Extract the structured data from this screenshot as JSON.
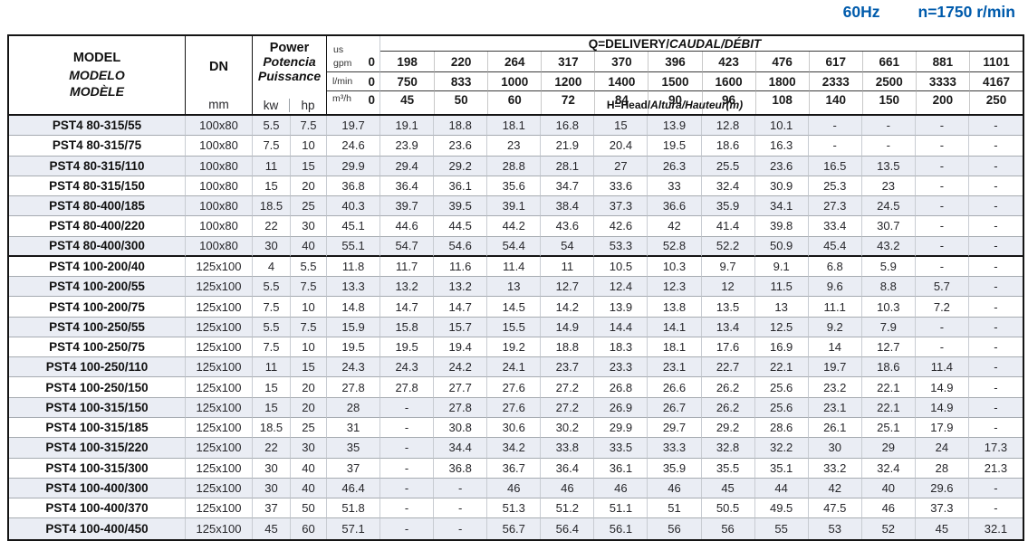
{
  "page_header": {
    "frequency": "60Hz",
    "speed": "n=1750 r/min"
  },
  "colors": {
    "accent_blue": "#005bac",
    "row_shade": "#eaedf4",
    "border_dark": "#141414"
  },
  "table": {
    "model_header": [
      "MODEL",
      "MODELO",
      "MODÈLE"
    ],
    "dn_label": "DN",
    "dn_unit": "mm",
    "power_header": [
      "Power",
      "Potencia",
      "Puissance"
    ],
    "power_units": [
      "kw",
      "hp"
    ],
    "q_header_plain": "Q=DELIVERY/",
    "q_header_italic": "CAUDAL/DÉBIT",
    "h_header_plain": "H=Head/",
    "h_header_italic": "Altura/Hauteur(m)",
    "flow_rows": [
      {
        "unit_top": "us",
        "unit": "gpm",
        "zero": "0",
        "values": [
          "198",
          "220",
          "264",
          "317",
          "370",
          "396",
          "423",
          "476",
          "617",
          "661",
          "881",
          "1101"
        ]
      },
      {
        "unit": "l/min",
        "zero": "0",
        "values": [
          "750",
          "833",
          "1000",
          "1200",
          "1400",
          "1500",
          "1600",
          "1800",
          "2333",
          "2500",
          "3333",
          "4167"
        ]
      },
      {
        "unit": "m³/h",
        "zero": "0",
        "values": [
          "45",
          "50",
          "60",
          "72",
          "84",
          "90",
          "96",
          "108",
          "140",
          "150",
          "200",
          "250"
        ]
      }
    ],
    "rows": [
      {
        "model": "PST4 80-315/55",
        "dn": "100x80",
        "kw": "5.5",
        "hp": "7.5",
        "heads": [
          "19.7",
          "19.1",
          "18.8",
          "18.1",
          "16.8",
          "15",
          "13.9",
          "12.8",
          "10.1",
          "-",
          "-",
          "-",
          "-"
        ]
      },
      {
        "model": "PST4 80-315/75",
        "dn": "100x80",
        "kw": "7.5",
        "hp": "10",
        "heads": [
          "24.6",
          "23.9",
          "23.6",
          "23",
          "21.9",
          "20.4",
          "19.5",
          "18.6",
          "16.3",
          "-",
          "-",
          "-",
          "-"
        ]
      },
      {
        "model": "PST4 80-315/110",
        "dn": "100x80",
        "kw": "11",
        "hp": "15",
        "heads": [
          "29.9",
          "29.4",
          "29.2",
          "28.8",
          "28.1",
          "27",
          "26.3",
          "25.5",
          "23.6",
          "16.5",
          "13.5",
          "-",
          "-"
        ]
      },
      {
        "model": "PST4 80-315/150",
        "dn": "100x80",
        "kw": "15",
        "hp": "20",
        "heads": [
          "36.8",
          "36.4",
          "36.1",
          "35.6",
          "34.7",
          "33.6",
          "33",
          "32.4",
          "30.9",
          "25.3",
          "23",
          "-",
          "-"
        ]
      },
      {
        "model": "PST4 80-400/185",
        "dn": "100x80",
        "kw": "18.5",
        "hp": "25",
        "heads": [
          "40.3",
          "39.7",
          "39.5",
          "39.1",
          "38.4",
          "37.3",
          "36.6",
          "35.9",
          "34.1",
          "27.3",
          "24.5",
          "-",
          "-"
        ]
      },
      {
        "model": "PST4 80-400/220",
        "dn": "100x80",
        "kw": "22",
        "hp": "30",
        "heads": [
          "45.1",
          "44.6",
          "44.5",
          "44.2",
          "43.6",
          "42.6",
          "42",
          "41.4",
          "39.8",
          "33.4",
          "30.7",
          "-",
          "-"
        ]
      },
      {
        "model": "PST4 80-400/300",
        "dn": "100x80",
        "kw": "30",
        "hp": "40",
        "heads": [
          "55.1",
          "54.7",
          "54.6",
          "54.4",
          "54",
          "53.3",
          "52.8",
          "52.2",
          "50.9",
          "45.4",
          "43.2",
          "-",
          "-"
        ]
      },
      {
        "model": "PST4 100-200/40",
        "dn": "125x100",
        "kw": "4",
        "hp": "5.5",
        "heads": [
          "11.8",
          "11.7",
          "11.6",
          "11.4",
          "11",
          "10.5",
          "10.3",
          "9.7",
          "9.1",
          "6.8",
          "5.9",
          "-",
          "-"
        ]
      },
      {
        "model": "PST4 100-200/55",
        "dn": "125x100",
        "kw": "5.5",
        "hp": "7.5",
        "heads": [
          "13.3",
          "13.2",
          "13.2",
          "13",
          "12.7",
          "12.4",
          "12.3",
          "12",
          "11.5",
          "9.6",
          "8.8",
          "5.7",
          "-"
        ]
      },
      {
        "model": "PST4 100-200/75",
        "dn": "125x100",
        "kw": "7.5",
        "hp": "10",
        "heads": [
          "14.8",
          "14.7",
          "14.7",
          "14.5",
          "14.2",
          "13.9",
          "13.8",
          "13.5",
          "13",
          "11.1",
          "10.3",
          "7.2",
          "-"
        ]
      },
      {
        "model": "PST4 100-250/55",
        "dn": "125x100",
        "kw": "5.5",
        "hp": "7.5",
        "heads": [
          "15.9",
          "15.8",
          "15.7",
          "15.5",
          "14.9",
          "14.4",
          "14.1",
          "13.4",
          "12.5",
          "9.2",
          "7.9",
          "-",
          "-"
        ]
      },
      {
        "model": "PST4 100-250/75",
        "dn": "125x100",
        "kw": "7.5",
        "hp": "10",
        "heads": [
          "19.5",
          "19.5",
          "19.4",
          "19.2",
          "18.8",
          "18.3",
          "18.1",
          "17.6",
          "16.9",
          "14",
          "12.7",
          "-",
          "-"
        ]
      },
      {
        "model": "PST4 100-250/110",
        "dn": "125x100",
        "kw": "11",
        "hp": "15",
        "heads": [
          "24.3",
          "24.3",
          "24.2",
          "24.1",
          "23.7",
          "23.3",
          "23.1",
          "22.7",
          "22.1",
          "19.7",
          "18.6",
          "11.4",
          "-"
        ]
      },
      {
        "model": "PST4 100-250/150",
        "dn": "125x100",
        "kw": "15",
        "hp": "20",
        "heads": [
          "27.8",
          "27.8",
          "27.7",
          "27.6",
          "27.2",
          "26.8",
          "26.6",
          "26.2",
          "25.6",
          "23.2",
          "22.1",
          "14.9",
          "-"
        ]
      },
      {
        "model": "PST4 100-315/150",
        "dn": "125x100",
        "kw": "15",
        "hp": "20",
        "heads": [
          "28",
          "-",
          "27.8",
          "27.6",
          "27.2",
          "26.9",
          "26.7",
          "26.2",
          "25.6",
          "23.1",
          "22.1",
          "14.9",
          "-"
        ]
      },
      {
        "model": "PST4 100-315/185",
        "dn": "125x100",
        "kw": "18.5",
        "hp": "25",
        "heads": [
          "31",
          "-",
          "30.8",
          "30.6",
          "30.2",
          "29.9",
          "29.7",
          "29.2",
          "28.6",
          "26.1",
          "25.1",
          "17.9",
          "-"
        ]
      },
      {
        "model": "PST4 100-315/220",
        "dn": "125x100",
        "kw": "22",
        "hp": "30",
        "heads": [
          "35",
          "-",
          "34.4",
          "34.2",
          "33.8",
          "33.5",
          "33.3",
          "32.8",
          "32.2",
          "30",
          "29",
          "24",
          "17.3"
        ]
      },
      {
        "model": "PST4 100-315/300",
        "dn": "125x100",
        "kw": "30",
        "hp": "40",
        "heads": [
          "37",
          "-",
          "36.8",
          "36.7",
          "36.4",
          "36.1",
          "35.9",
          "35.5",
          "35.1",
          "33.2",
          "32.4",
          "28",
          "21.3"
        ]
      },
      {
        "model": "PST4 100-400/300",
        "dn": "125x100",
        "kw": "30",
        "hp": "40",
        "heads": [
          "46.4",
          "-",
          "-",
          "46",
          "46",
          "46",
          "46",
          "45",
          "44",
          "42",
          "40",
          "29.6",
          "-"
        ]
      },
      {
        "model": "PST4 100-400/370",
        "dn": "125x100",
        "kw": "37",
        "hp": "50",
        "heads": [
          "51.8",
          "-",
          "-",
          "51.3",
          "51.2",
          "51.1",
          "51",
          "50.5",
          "49.5",
          "47.5",
          "46",
          "37.3",
          "-"
        ]
      },
      {
        "model": "PST4 100-400/450",
        "dn": "125x100",
        "kw": "45",
        "hp": "60",
        "heads": [
          "57.1",
          "-",
          "-",
          "56.7",
          "56.4",
          "56.1",
          "56",
          "56",
          "55",
          "53",
          "52",
          "45",
          "32.1"
        ]
      }
    ]
  }
}
